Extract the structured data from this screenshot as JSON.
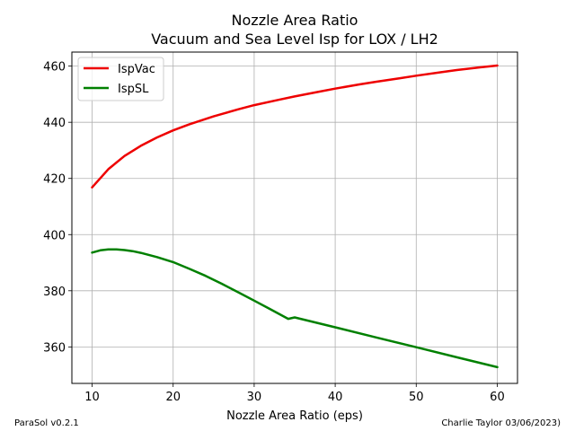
{
  "chart_data": {
    "type": "line",
    "title": "Nozzle Area Ratio",
    "subtitle": "Vacuum and Sea Level Isp for LOX / LH2",
    "xlabel": "Nozzle Area Ratio (eps)",
    "ylabel": "",
    "xlim": [
      7.5,
      62.5
    ],
    "ylim": [
      347,
      465
    ],
    "xticks": [
      10,
      20,
      30,
      40,
      50,
      60
    ],
    "yticks": [
      360,
      380,
      400,
      420,
      440,
      460
    ],
    "grid": true,
    "legend_position": "top-left",
    "series": [
      {
        "name": "IspVac",
        "color": "#ee0000",
        "x": [
          10,
          12,
          14,
          16,
          18,
          20,
          22,
          25,
          28,
          30,
          33,
          35,
          38,
          40,
          43,
          45,
          48,
          50,
          53,
          55,
          58,
          60
        ],
        "y": [
          416.8,
          423.3,
          428.0,
          431.6,
          434.6,
          437.1,
          439.3,
          442.1,
          444.6,
          446.1,
          448.0,
          449.2,
          450.9,
          452.0,
          453.5,
          454.4,
          455.7,
          456.6,
          457.8,
          458.6,
          459.6,
          460.2
        ]
      },
      {
        "name": "IspSL",
        "color": "#008000",
        "x": [
          10,
          11,
          12,
          13,
          14,
          15,
          16,
          18,
          20,
          22,
          24,
          26,
          28,
          30,
          32,
          34.2,
          35,
          40,
          45,
          50,
          55,
          60
        ],
        "y": [
          393.6,
          394.4,
          394.7,
          394.7,
          394.5,
          394.1,
          393.5,
          392.0,
          390.2,
          387.8,
          385.3,
          382.5,
          379.5,
          376.5,
          373.4,
          370.0,
          370.5,
          367.0,
          363.4,
          359.9,
          356.3,
          352.8
        ]
      }
    ]
  },
  "footer": {
    "left": "ParaSol v0.2.1",
    "right": "Charlie Taylor 03/06/2023)"
  }
}
